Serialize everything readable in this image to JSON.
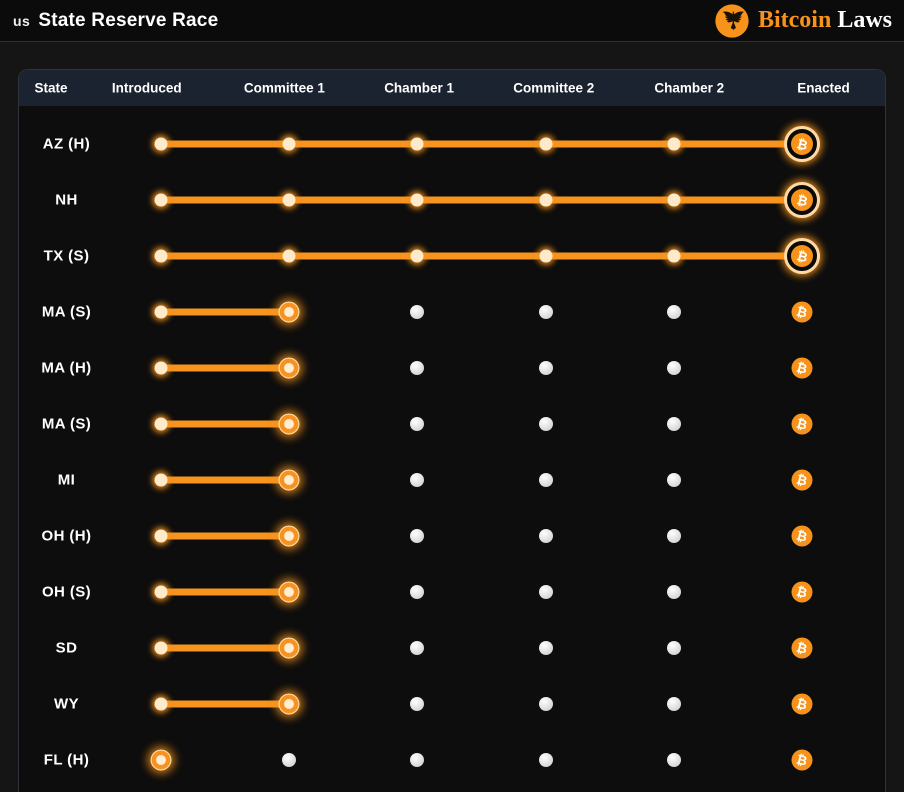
{
  "header": {
    "us_prefix": "us",
    "title": "State Reserve Race",
    "brand": {
      "primary": "Bitcoin",
      "secondary": "Laws"
    }
  },
  "table": {
    "columns": [
      "State",
      "Introduced",
      "Committee 1",
      "Chamber 1",
      "Committee 2",
      "Chamber 2",
      "Enacted"
    ],
    "stages": [
      "Introduced",
      "Committee 1",
      "Chamber 1",
      "Committee 2",
      "Chamber 2",
      "Enacted"
    ],
    "rows": [
      {
        "state": "AZ (H)",
        "stage_index": 5,
        "stage_label": "Enacted"
      },
      {
        "state": "NH",
        "stage_index": 5,
        "stage_label": "Enacted"
      },
      {
        "state": "TX (S)",
        "stage_index": 5,
        "stage_label": "Enacted"
      },
      {
        "state": "MA (S)",
        "stage_index": 1,
        "stage_label": "Committee 1"
      },
      {
        "state": "MA (H)",
        "stage_index": 1,
        "stage_label": "Committee 1"
      },
      {
        "state": "MA (S)",
        "stage_index": 1,
        "stage_label": "Committee 1"
      },
      {
        "state": "MI",
        "stage_index": 1,
        "stage_label": "Committee 1"
      },
      {
        "state": "OH (H)",
        "stage_index": 1,
        "stage_label": "Committee 1"
      },
      {
        "state": "OH (S)",
        "stage_index": 1,
        "stage_label": "Committee 1"
      },
      {
        "state": "SD",
        "stage_index": 1,
        "stage_label": "Committee 1"
      },
      {
        "state": "WY",
        "stage_index": 1,
        "stage_label": "Committee 1"
      },
      {
        "state": "FL (H)",
        "stage_index": 0,
        "stage_label": "Introduced"
      }
    ]
  },
  "icons": {
    "bitcoin_glyph": "₿",
    "eagle_seal": "eagle-seal-icon"
  },
  "colors": {
    "accent_orange": "#f7931a",
    "line_orange": "#f7941e",
    "reached_dot": "#ffe9cb",
    "future_dot": "#d6d6d6",
    "header_row_bg": "#1b2330",
    "card_bg": "#0d0d0d",
    "page_bg": "#151515",
    "topbar_bg": "#0b0b0b",
    "text_white": "#ffffff"
  }
}
